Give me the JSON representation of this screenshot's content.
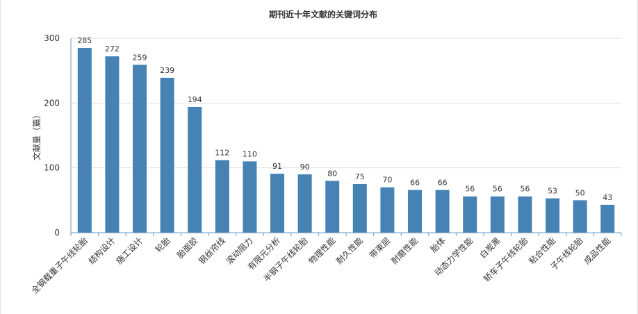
{
  "chart_data": {
    "type": "bar",
    "title": "期刊近十年文献的关键词分布",
    "xlabel": "",
    "ylabel": "文献量（篇）",
    "ylim": [
      0,
      300
    ],
    "yticks": [
      0,
      100,
      200,
      300
    ],
    "grid": true,
    "legend": "none",
    "categories": [
      "全钢载重子午线轮胎",
      "结构设计",
      "施工设计",
      "轮胎",
      "胎面胶",
      "钢丝帘线",
      "滚动阻力",
      "有限元分析",
      "半钢子午线轮胎",
      "物理性能",
      "耐久性能",
      "带束层",
      "耐磨性能",
      "胎体",
      "动态力学性能",
      "白炭黑",
      "轿车子午线轮胎",
      "粘合性能",
      "子午线轮胎",
      "成品性能"
    ],
    "values": [
      285,
      272,
      259,
      239,
      194,
      112,
      110,
      91,
      90,
      80,
      75,
      70,
      66,
      66,
      56,
      56,
      56,
      53,
      50,
      43
    ],
    "bar_color": "#4682b4",
    "grid_color": "#dddddd",
    "axis_color": "#6e9bbf"
  }
}
